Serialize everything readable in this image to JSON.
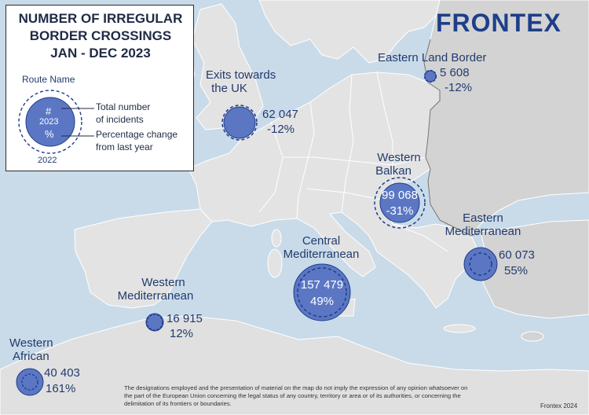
{
  "title_lines": [
    "NUMBER OF IRREGULAR",
    "BORDER CROSSINGS",
    "JAN - DEC 2023"
  ],
  "logo": "FRONTEX",
  "legend": {
    "route_name": "Route Name",
    "hash": "#",
    "year_current": "2023",
    "percent": "%",
    "year_previous": "2022",
    "desc_total_1": "Total number",
    "desc_total_2": "of incidents",
    "desc_change_1": "Percentage change",
    "desc_change_2": "from last year"
  },
  "routes": [
    {
      "name_lines": [
        "Eastern Land Border"
      ],
      "value": "5 608",
      "change": "-12%"
    },
    {
      "name_lines": [
        "Exits towards",
        "the UK"
      ],
      "value": "62 047",
      "change": "-12%"
    },
    {
      "name_lines": [
        "Western",
        "Balkan"
      ],
      "value": "99 068",
      "change": "-31%"
    },
    {
      "name_lines": [
        "Eastern",
        "Mediterranean"
      ],
      "value": "60 073",
      "change": "55%"
    },
    {
      "name_lines": [
        "Central",
        "Mediterranean"
      ],
      "value": "157 479",
      "change": "49%"
    },
    {
      "name_lines": [
        "Western",
        "Mediterranean"
      ],
      "value": "16 915",
      "change": "12%"
    },
    {
      "name_lines": [
        "Western",
        "African"
      ],
      "value": "40 403",
      "change": "161%"
    }
  ],
  "disclaimer": "The designations employed and the presentation of material on the map do not imply the expression of any opinion whatsoever on the part of the European Union concerning the legal status of any country, territory or area or of its authorities, or concerning the delimitation of its frontiers or boundaries.",
  "credit": "Frontex 2024",
  "colors": {
    "sea": "#c9dbe9",
    "land": "#e3e3e3",
    "non_eu_land": "#d3d3d3",
    "circle_fill": "#5b77c4",
    "circle_stroke": "#1f3c88",
    "text": "#233b6e"
  }
}
